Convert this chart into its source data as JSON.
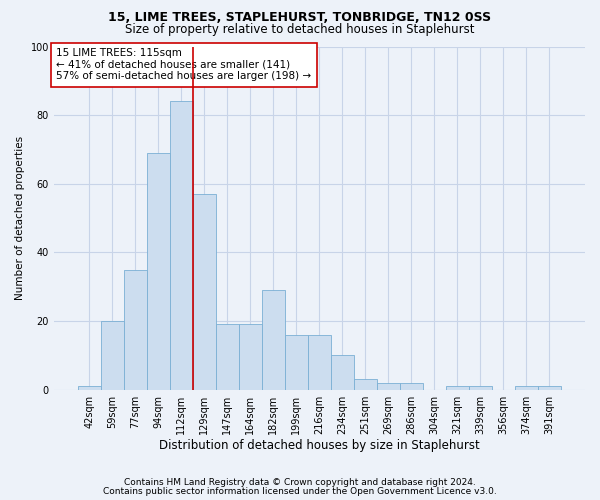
{
  "title1": "15, LIME TREES, STAPLEHURST, TONBRIDGE, TN12 0SS",
  "title2": "Size of property relative to detached houses in Staplehurst",
  "xlabel": "Distribution of detached houses by size in Staplehurst",
  "ylabel": "Number of detached properties",
  "categories": [
    "42sqm",
    "59sqm",
    "77sqm",
    "94sqm",
    "112sqm",
    "129sqm",
    "147sqm",
    "164sqm",
    "182sqm",
    "199sqm",
    "216sqm",
    "234sqm",
    "251sqm",
    "269sqm",
    "286sqm",
    "304sqm",
    "321sqm",
    "339sqm",
    "356sqm",
    "374sqm",
    "391sqm"
  ],
  "values": [
    1,
    20,
    35,
    69,
    84,
    57,
    19,
    19,
    29,
    16,
    16,
    10,
    3,
    2,
    2,
    0,
    1,
    1,
    0,
    1,
    1
  ],
  "bar_color": "#ccddef",
  "bar_edge_color": "#7aafd4",
  "grid_color": "#c8d4e8",
  "background_color": "#edf2f9",
  "vline_color": "#cc0000",
  "vline_x": 4.5,
  "annotation_text": "15 LIME TREES: 115sqm\n← 41% of detached houses are smaller (141)\n57% of semi-detached houses are larger (198) →",
  "ylim": [
    0,
    100
  ],
  "yticks": [
    0,
    20,
    40,
    60,
    80,
    100
  ],
  "footer1": "Contains HM Land Registry data © Crown copyright and database right 2024.",
  "footer2": "Contains public sector information licensed under the Open Government Licence v3.0.",
  "title1_fontsize": 9,
  "title2_fontsize": 8.5,
  "xlabel_fontsize": 8.5,
  "ylabel_fontsize": 7.5,
  "tick_fontsize": 7,
  "annotation_fontsize": 7.5,
  "footer_fontsize": 6.5
}
